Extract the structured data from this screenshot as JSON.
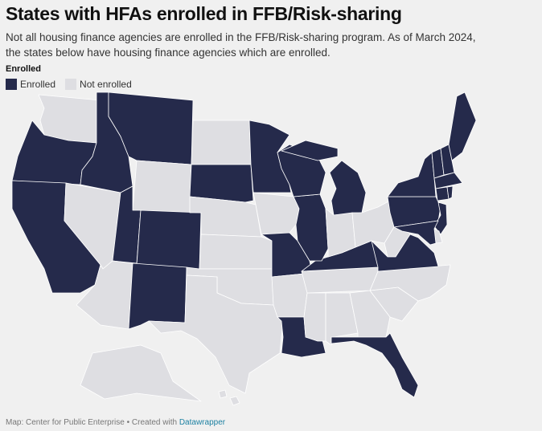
{
  "title": "States with HFAs enrolled in FFB/Risk-sharing",
  "description": "Not all housing finance agencies are enrolled in the FFB/Risk-sharing program. As of March 2024, the states below have housing finance agencies which are enrolled.",
  "legend": {
    "title": "Enrolled",
    "items": [
      {
        "label": "Enrolled",
        "color": "#252a4b"
      },
      {
        "label": "Not enrolled",
        "color": "#dedee2"
      }
    ]
  },
  "colors": {
    "enrolled": "#252a4b",
    "not_enrolled": "#dedee2",
    "background": "#f0f0f0",
    "border": "#ffffff"
  },
  "states": {
    "WA": false,
    "OR": true,
    "CA": true,
    "NV": false,
    "ID": true,
    "MT": true,
    "WY": false,
    "UT": true,
    "CO": true,
    "AZ": false,
    "NM": true,
    "ND": false,
    "SD": true,
    "NE": false,
    "KS": false,
    "OK": false,
    "TX": false,
    "MN": true,
    "IA": false,
    "MO": true,
    "AR": false,
    "LA": true,
    "MS": false,
    "AL": false,
    "GA": false,
    "FL": true,
    "SC": false,
    "NC": false,
    "TN": false,
    "KY": true,
    "IL": true,
    "WI": true,
    "MI": true,
    "IN": false,
    "OH": false,
    "WV": false,
    "VA": true,
    "PA": true,
    "NY": true,
    "VT": true,
    "NH": true,
    "ME": true,
    "MA": true,
    "CT": true,
    "RI": true,
    "NJ": true,
    "DE": false,
    "MD": true,
    "AK": false,
    "HI": false
  },
  "footer": {
    "source": "Map: Center for Public Enterprise • Created with ",
    "link": "Datawrapper"
  }
}
